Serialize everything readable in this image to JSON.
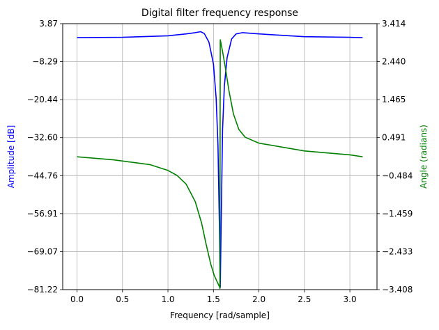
{
  "chart_data": {
    "type": "line",
    "title": "Digital filter frequency response",
    "xlabel": "Frequency [rad/sample]",
    "ylabel_left": "Amplitude [dB]",
    "ylabel_right": "Angle (radians)",
    "xlim": [
      -0.157,
      3.298
    ],
    "ylim_left": [
      -81.22,
      3.87
    ],
    "ylim_right": [
      -3.408,
      3.414
    ],
    "x_ticks": [
      "0.0",
      "0.5",
      "1.0",
      "1.5",
      "2.0",
      "2.5",
      "3.0"
    ],
    "y_left_ticks": [
      "3.87",
      "−8.29",
      "−20.44",
      "−32.60",
      "−44.76",
      "−56.91",
      "−69.07",
      "−81.22"
    ],
    "y_right_ticks": [
      "3.414",
      "2.440",
      "1.465",
      "0.491",
      "−0.484",
      "−1.459",
      "−2.433",
      "−3.408"
    ],
    "grid": true,
    "series": [
      {
        "axis": "left",
        "color": "#0000ff",
        "x": [
          0.0,
          0.5,
          1.0,
          1.2,
          1.3,
          1.36,
          1.4,
          1.45,
          1.5,
          1.53,
          1.55,
          1.565,
          1.575,
          1.585,
          1.6,
          1.62,
          1.65,
          1.7,
          1.75,
          1.82,
          2.0,
          2.5,
          3.0,
          3.14
        ],
        "values": [
          -0.6,
          -0.5,
          0.0,
          0.6,
          1.0,
          1.3,
          0.7,
          -2.0,
          -9.0,
          -20.0,
          -35.0,
          -60.0,
          -80.5,
          -60.0,
          -30.0,
          -16.0,
          -7.0,
          -1.0,
          0.6,
          1.0,
          0.6,
          -0.3,
          -0.5,
          -0.6
        ]
      },
      {
        "axis": "right",
        "color": "#008000",
        "x": [
          0.0,
          0.4,
          0.8,
          1.0,
          1.1,
          1.2,
          1.3,
          1.37,
          1.42,
          1.47,
          1.51,
          1.54,
          1.56,
          1.57,
          1.571,
          1.571,
          1.575,
          1.58,
          1.6,
          1.63,
          1.67,
          1.72,
          1.78,
          1.85,
          2.0,
          2.5,
          3.0,
          3.14
        ],
        "values": [
          0.0,
          -0.08,
          -0.2,
          -0.35,
          -0.48,
          -0.7,
          -1.15,
          -1.7,
          -2.25,
          -2.75,
          -3.05,
          -3.2,
          -3.3,
          -3.35,
          -3.38,
          -2.0,
          3.0,
          2.95,
          2.7,
          2.3,
          1.7,
          1.1,
          0.7,
          0.5,
          0.35,
          0.15,
          0.05,
          0.0
        ]
      }
    ]
  }
}
